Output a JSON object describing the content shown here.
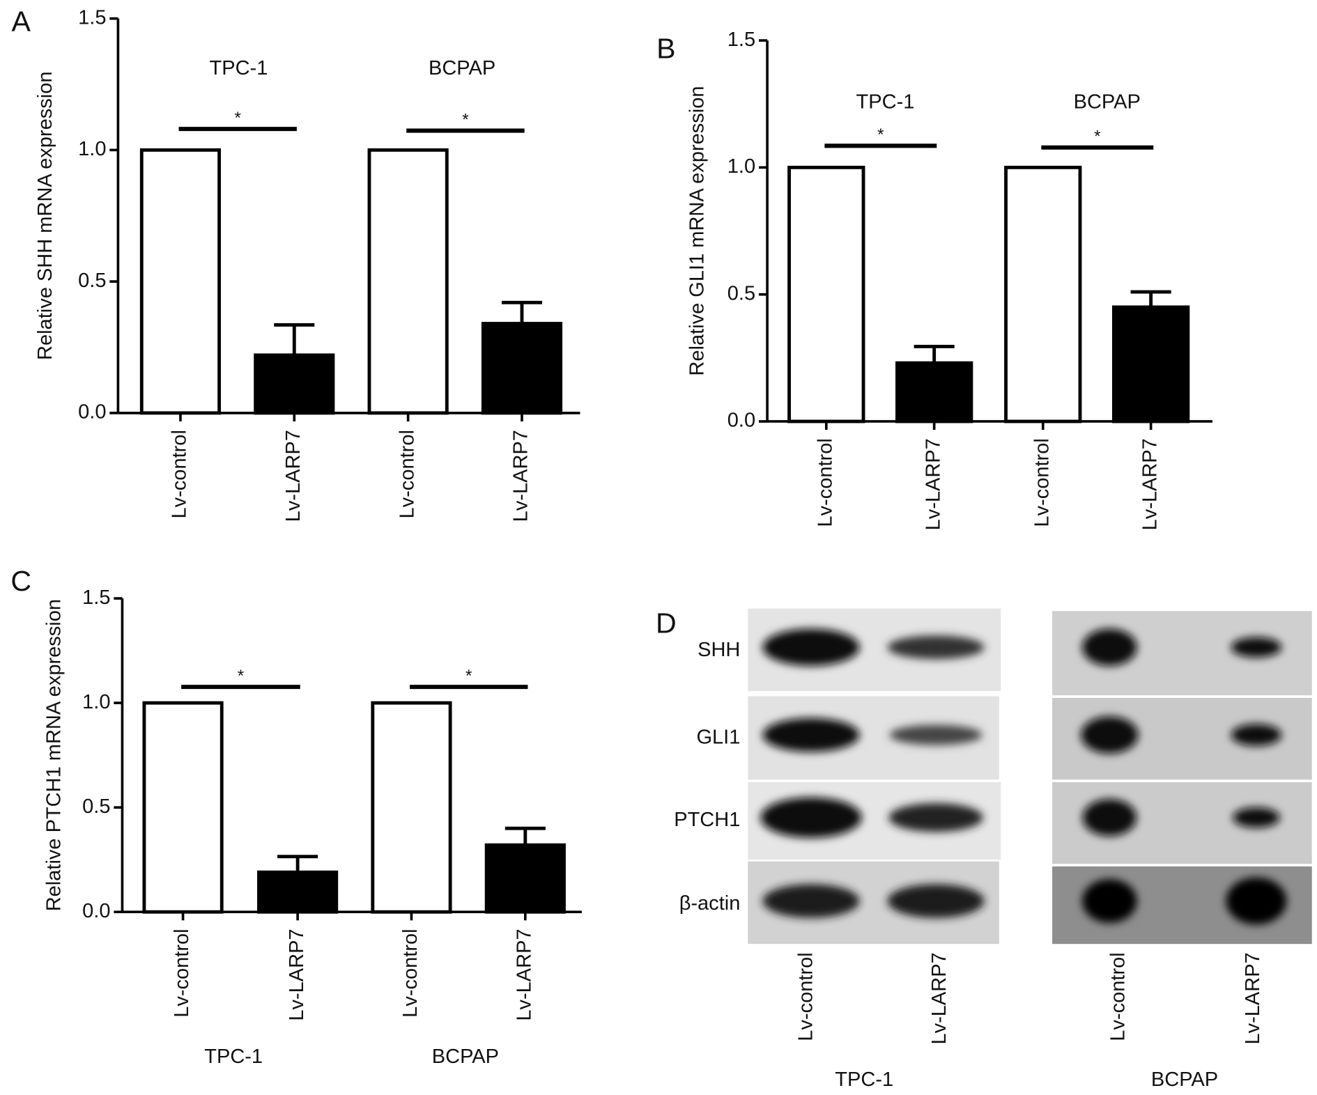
{
  "chart_data": [
    {
      "type": "bar",
      "panel": "A",
      "y_label": "Relative SHH mRNA expression",
      "categories": [
        "Lv-control",
        "Lv-LARP7",
        "Lv-control",
        "Lv-LARP7"
      ],
      "values": [
        1,
        0.22,
        1,
        0.34
      ],
      "errors": [
        null,
        0.115,
        null,
        0.08
      ],
      "colors": [
        "#ffffff",
        "#000000",
        "#ffffff",
        "#000000"
      ],
      "groups": [
        "TPC-1",
        "BCPAP"
      ],
      "group_label_position": "top",
      "significance": [
        "*",
        "*"
      ],
      "ylim": [
        0,
        1.5
      ],
      "yticks": [
        {
          "value": 0,
          "label": "0.0"
        },
        0.5,
        {
          "value": 1,
          "label": "1.0"
        },
        1.5
      ]
    },
    {
      "type": "bar",
      "panel": "B",
      "y_label": "Relative GLI1 mRNA expression",
      "categories": [
        "Lv-control",
        "Lv-LARP7",
        "Lv-control",
        "Lv-LARP7"
      ],
      "values": [
        1,
        0.23,
        1,
        0.45
      ],
      "errors": [
        null,
        0.065,
        null,
        0.06
      ],
      "colors": [
        "#ffffff",
        "#000000",
        "#ffffff",
        "#000000"
      ],
      "groups": [
        "TPC-1",
        "BCPAP"
      ],
      "group_label_position": "top",
      "significance": [
        "*",
        "*"
      ],
      "ylim": [
        0,
        1.5
      ],
      "yticks": [
        {
          "value": 0,
          "label": "0.0"
        },
        0.5,
        {
          "value": 1,
          "label": "1.0"
        },
        1.5
      ]
    },
    {
      "type": "bar",
      "panel": "C",
      "y_label": "Relative PTCH1 mRNA expression",
      "categories": [
        "Lv-control",
        "Lv-LARP7",
        "Lv-control",
        "Lv-LARP7"
      ],
      "values": [
        1,
        0.19,
        1,
        0.32
      ],
      "errors": [
        null,
        0.075,
        null,
        0.08
      ],
      "colors": [
        "#ffffff",
        "#000000",
        "#ffffff",
        "#000000"
      ],
      "groups": [
        "TPC-1",
        "BCPAP"
      ],
      "group_label_position": "bottom",
      "significance": [
        "*",
        "*"
      ],
      "ylim": [
        0,
        1.5
      ],
      "yticks": [
        {
          "value": 0,
          "label": "0.0"
        },
        0.5,
        {
          "value": 1,
          "label": "1.0"
        },
        1.5
      ]
    }
  ],
  "blot": {
    "panel": "D",
    "proteins": [
      "SHH",
      "GLI1",
      "PTCH1",
      "β-actin"
    ],
    "lanes": [
      "Lv-control",
      "Lv-LARP7"
    ],
    "cell_lines": [
      "TPC-1",
      "BCPAP"
    ]
  }
}
